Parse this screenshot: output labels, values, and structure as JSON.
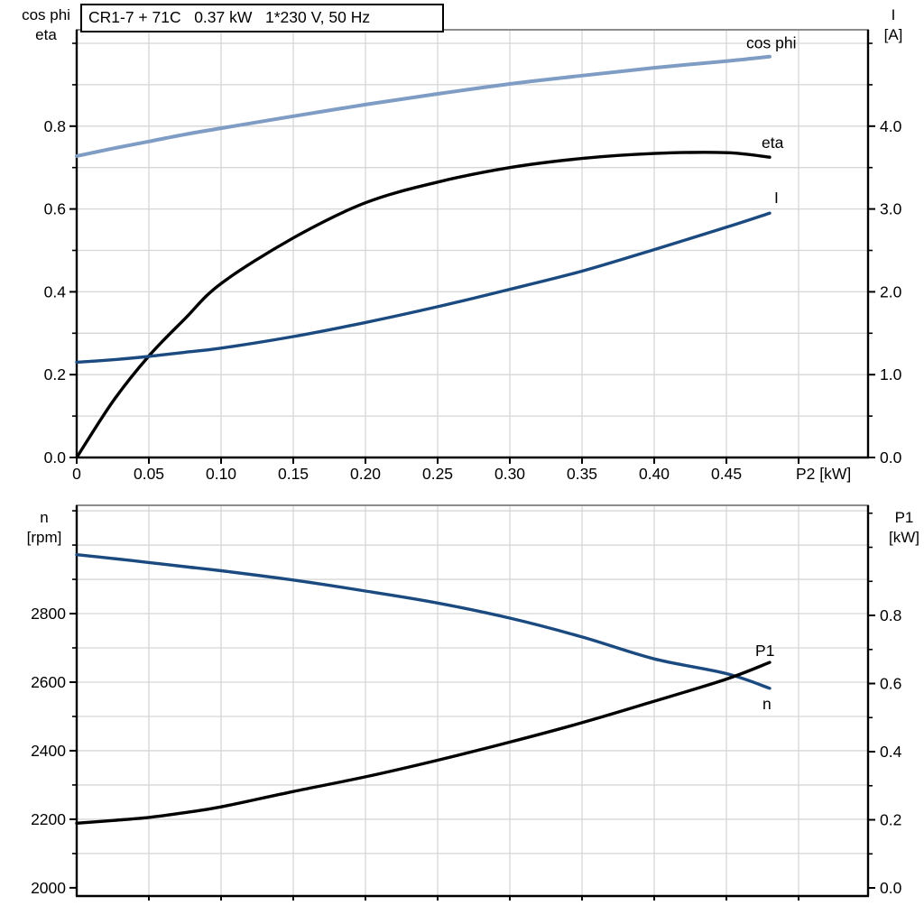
{
  "title": "CR1-7 + 71C   0.37 kW   1*230 V, 50 Hz",
  "colors": {
    "light_blue": "#7e9cc4",
    "dark_blue": "#1a4a80",
    "black": "#000000",
    "grid": "#d6d6d6",
    "frame": "#8c8c8c",
    "background": "#ffffff"
  },
  "chart_data": [
    {
      "type": "line",
      "panel": "top",
      "title": "CR1-7 + 71C   0.37 kW   1*230 V, 50 Hz",
      "xlabel": "P2 [kW]",
      "left_axis_title": [
        "cos phi",
        "eta"
      ],
      "right_axis_title": [
        "I",
        "[A]"
      ],
      "xlim": [
        0,
        0.5481
      ],
      "ylim_left": [
        0,
        1.0327
      ],
      "ylim_right": [
        0,
        5.1635
      ],
      "grid": "on",
      "x_gridlines": {
        "start": 0.05,
        "step": 0.05,
        "end": 0.5
      },
      "left_gridlines": {
        "start": 0.1,
        "step": 0.1,
        "end": 1.0
      },
      "x_ticks": [
        {
          "v": 0,
          "label": "0"
        },
        {
          "v": 0.05,
          "label": "0.05"
        },
        {
          "v": 0.1,
          "label": "0.10"
        },
        {
          "v": 0.15,
          "label": "0.15"
        },
        {
          "v": 0.2,
          "label": "0.20"
        },
        {
          "v": 0.25,
          "label": "0.25"
        },
        {
          "v": 0.3,
          "label": "0.30"
        },
        {
          "v": 0.35,
          "label": "0.35"
        },
        {
          "v": 0.4,
          "label": "0.40"
        },
        {
          "v": 0.45,
          "label": "0.45"
        },
        {
          "v": 0.5,
          "label": ""
        }
      ],
      "left_ticks": [
        {
          "v": 0.8,
          "label": "0.8"
        },
        {
          "v": 0.6,
          "label": "0.6"
        },
        {
          "v": 0.4,
          "label": "0.4"
        },
        {
          "v": 0.2,
          "label": "0.2"
        },
        {
          "v": 0.0,
          "label": "0.0"
        }
      ],
      "left_minor_ticks": [
        0.1,
        0.3,
        0.5,
        0.7,
        0.9,
        1.0
      ],
      "right_ticks": [
        {
          "v": 4.0,
          "label": "4.0"
        },
        {
          "v": 3.0,
          "label": "3.0"
        },
        {
          "v": 2.0,
          "label": "2.0"
        },
        {
          "v": 1.0,
          "label": "1.0"
        },
        {
          "v": 0.0,
          "label": "0.0"
        }
      ],
      "right_minor_ticks": [
        0.5,
        1.5,
        2.5,
        3.5,
        4.5,
        5.0
      ],
      "x": [
        0,
        0.025,
        0.05,
        0.075,
        0.1,
        0.15,
        0.2,
        0.25,
        0.3,
        0.35,
        0.4,
        0.45,
        0.48
      ],
      "series": [
        {
          "name": "cos phi",
          "axis": "left",
          "color": "#7e9cc4",
          "width": 4,
          "values": [
            0.728,
            0.746,
            0.763,
            0.78,
            0.795,
            0.824,
            0.852,
            0.878,
            0.902,
            0.922,
            0.941,
            0.957,
            0.968
          ]
        },
        {
          "name": "eta",
          "axis": "left",
          "color": "#000000",
          "width": 3.4,
          "values": [
            0.0,
            0.135,
            0.245,
            0.335,
            0.42,
            0.53,
            0.615,
            0.665,
            0.7,
            0.722,
            0.734,
            0.736,
            0.725
          ]
        },
        {
          "name": "I",
          "axis": "right",
          "color": "#1a4a80",
          "width": 3.4,
          "values": [
            1.15,
            1.18,
            1.22,
            1.27,
            1.32,
            1.46,
            1.63,
            1.82,
            2.03,
            2.25,
            2.51,
            2.78,
            2.95
          ]
        }
      ]
    },
    {
      "type": "line",
      "panel": "bottom",
      "xlabel": "",
      "left_axis_title": [
        "n",
        "[rpm]"
      ],
      "right_axis_title": [
        "P1",
        "[kW]"
      ],
      "xlim": [
        0,
        0.5481
      ],
      "ylim_left": [
        1976,
        3116
      ],
      "ylim_right": [
        -0.0238,
        1.1232
      ],
      "grid": "on",
      "x_gridlines": {
        "start": 0.05,
        "step": 0.05,
        "end": 0.5
      },
      "left_gridlines": {
        "start": 2100,
        "step": 100,
        "end": 3100
      },
      "x_ticks": [
        {
          "v": 0.05,
          "label": ""
        },
        {
          "v": 0.1,
          "label": ""
        },
        {
          "v": 0.15,
          "label": ""
        },
        {
          "v": 0.2,
          "label": ""
        },
        {
          "v": 0.25,
          "label": ""
        },
        {
          "v": 0.3,
          "label": ""
        },
        {
          "v": 0.35,
          "label": ""
        },
        {
          "v": 0.4,
          "label": ""
        },
        {
          "v": 0.45,
          "label": ""
        },
        {
          "v": 0.5,
          "label": ""
        }
      ],
      "left_ticks": [
        {
          "v": 2800,
          "label": "2800"
        },
        {
          "v": 2600,
          "label": "2600"
        },
        {
          "v": 2400,
          "label": "2400"
        },
        {
          "v": 2200,
          "label": "2200"
        },
        {
          "v": 2000,
          "label": "2000"
        }
      ],
      "left_minor_ticks": [
        2100,
        2300,
        2500,
        2700,
        2900,
        3000,
        3100
      ],
      "right_ticks": [
        {
          "v": 0.8,
          "label": "0.8"
        },
        {
          "v": 0.6,
          "label": "0.6"
        },
        {
          "v": 0.4,
          "label": "0.4"
        },
        {
          "v": 0.2,
          "label": "0.2"
        },
        {
          "v": 0.0,
          "label": "0.0"
        }
      ],
      "right_minor_ticks": [
        0.1,
        0.3,
        0.5,
        0.7,
        0.9,
        1.0,
        1.1
      ],
      "x": [
        0,
        0.025,
        0.05,
        0.075,
        0.1,
        0.15,
        0.2,
        0.25,
        0.3,
        0.35,
        0.4,
        0.45,
        0.48
      ],
      "series": [
        {
          "name": "n",
          "axis": "left",
          "color": "#1a4a80",
          "width": 3.4,
          "values": [
            2972,
            2961,
            2949,
            2937,
            2925,
            2898,
            2866,
            2831,
            2787,
            2732,
            2668,
            2625,
            2582
          ]
        },
        {
          "name": "P1",
          "axis": "right",
          "color": "#000000",
          "width": 3.4,
          "values": [
            0.19,
            0.198,
            0.207,
            0.221,
            0.238,
            0.283,
            0.326,
            0.375,
            0.428,
            0.485,
            0.548,
            0.613,
            0.662
          ]
        }
      ]
    }
  ]
}
